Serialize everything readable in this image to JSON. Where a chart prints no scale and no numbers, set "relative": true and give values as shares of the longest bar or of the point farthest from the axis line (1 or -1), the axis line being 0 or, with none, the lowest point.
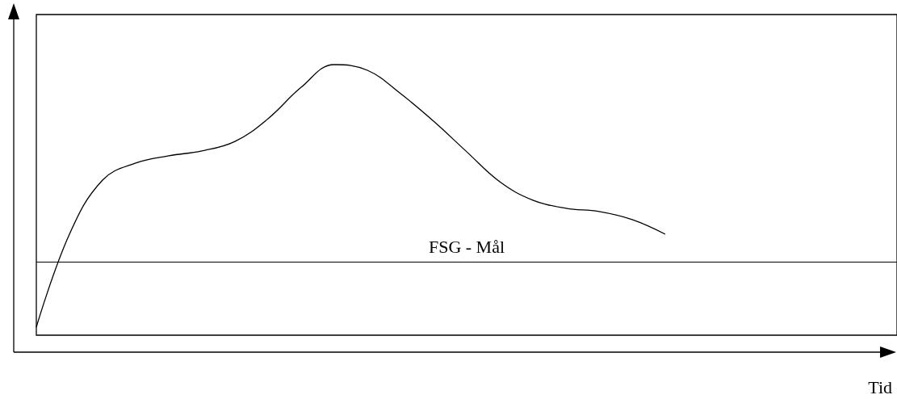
{
  "chart_data": {
    "type": "line",
    "relative": true,
    "xlabel": "Tid",
    "categories": [
      null,
      null,
      null,
      null,
      null,
      null,
      null,
      null,
      null,
      null,
      null,
      null,
      null,
      null,
      null,
      null,
      null,
      null,
      null,
      null,
      null,
      null,
      null,
      null,
      null,
      null,
      null
    ],
    "series": [
      {
        "color": "#000000",
        "values": [
          0.03,
          0.373,
          0.573,
          0.636,
          0.663,
          0.681,
          0.716,
          0.8,
          0.916,
          1,
          0.979,
          0.893,
          0.791,
          0.678,
          0.567,
          0.499,
          0.469,
          0.457,
          0.427,
          0.373,
          null,
          null,
          null,
          null,
          null,
          null,
          null
        ]
      }
    ],
    "ref_lines": [
      {
        "axis": "y",
        "value": 0.266,
        "label": "FSG - Mål",
        "color": "#000000"
      }
    ],
    "grid": false,
    "marker": "none",
    "line_style": "solid",
    "tick_labels": false
  }
}
